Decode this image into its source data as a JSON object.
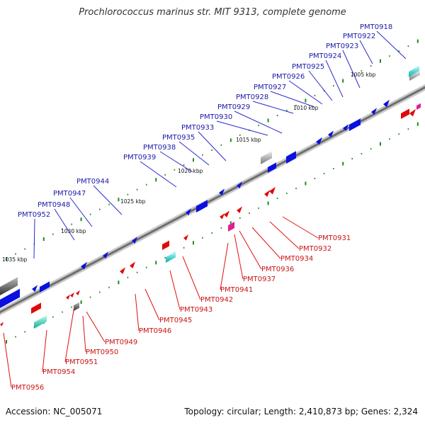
{
  "title": "Prochlorococcus marinus str. MIT 9313, complete genome",
  "footer": {
    "accession": "Accession: NC_005071",
    "summary": "Topology: circular; Length: 2,410,873 bp; Genes: 2,324"
  },
  "colors": {
    "forward_label": "#1a1aa8",
    "reverse_label": "#c81414",
    "forward_gene": "#0a10e0",
    "reverse_gene": "#e00a0a",
    "tick": "#1f8a1f",
    "backbone": "#7a7a7a"
  },
  "kbp_labels": [
    "1005 kbp",
    "1010 kbp",
    "1015 kbp",
    "1020 kbp",
    "1025 kbp",
    "1030 kbp",
    "1035 kbp"
  ],
  "forward_genes": [
    "PMT0918",
    "PMT0922",
    "PMT0923",
    "PMT0924",
    "PMT0925",
    "PMT0926",
    "PMT0927",
    "PMT0928",
    "PMT0929",
    "PMT0930",
    "PMT0933",
    "PMT0935",
    "PMT0938",
    "PMT0939",
    "PMT0944",
    "PMT0947",
    "PMT0948",
    "PMT0952"
  ],
  "reverse_genes": [
    "PMT0931",
    "PMT0932",
    "PMT0934",
    "PMT0936",
    "PMT0937",
    "PMT0941",
    "PMT0942",
    "PMT0943",
    "PMT0945",
    "PMT0946",
    "PMT0949",
    "PMT0950",
    "PMT0951",
    "PMT0954",
    "PMT0956"
  ]
}
